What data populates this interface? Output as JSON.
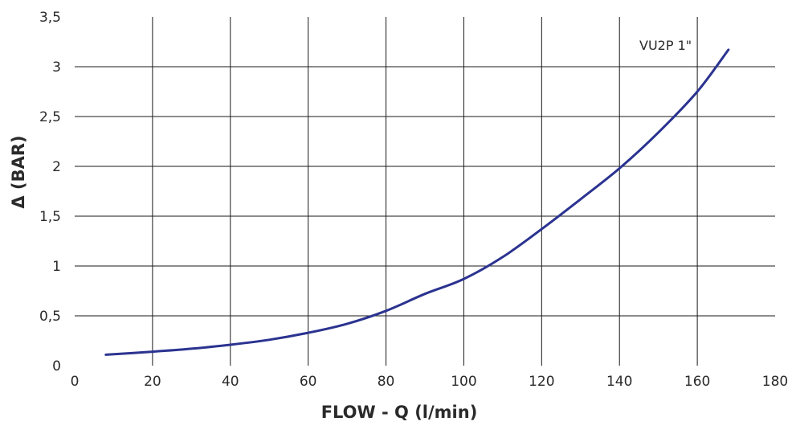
{
  "chart_data": {
    "type": "line",
    "xlabel": "FLOW - Q (l/min)",
    "ylabel": "Δ (BAR)",
    "xlim": [
      0,
      180
    ],
    "ylim": [
      0,
      3.5
    ],
    "x_ticks": [
      0,
      20,
      40,
      60,
      80,
      100,
      120,
      140,
      160,
      180
    ],
    "x_tick_labels": [
      "0",
      "20",
      "40",
      "60",
      "80",
      "100",
      "120",
      "140",
      "160",
      "180"
    ],
    "y_ticks": [
      0,
      0.5,
      1,
      1.5,
      2,
      2.5,
      3,
      3.5
    ],
    "y_tick_labels": [
      "0",
      "0,5",
      "1",
      "1,5",
      "2",
      "2,5",
      "3",
      "3,5"
    ],
    "grid": true,
    "color": "#2b3390",
    "series": [
      {
        "name": "VU2P 1\"",
        "x": [
          8,
          20,
          30,
          40,
          50,
          60,
          70,
          80,
          90,
          100,
          110,
          120,
          130,
          140,
          150,
          160,
          168
        ],
        "y": [
          0.11,
          0.14,
          0.17,
          0.21,
          0.26,
          0.33,
          0.42,
          0.55,
          0.72,
          0.87,
          1.09,
          1.37,
          1.67,
          1.98,
          2.34,
          2.75,
          3.17
        ]
      }
    ]
  }
}
